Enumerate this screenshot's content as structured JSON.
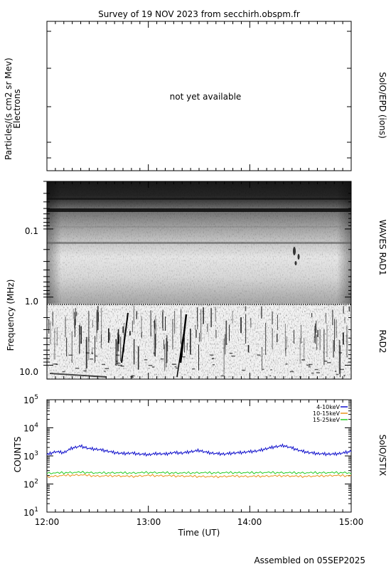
{
  "title": "Survey of 19 NOV 2023 from secchirh.obspm.fr",
  "footer": "Assembled on 05SEP2025",
  "colors": {
    "series_4_10": "#1010cc",
    "series_10_15": "#e8921a",
    "series_15_25": "#22cc22",
    "frame": "#000000",
    "na_text": "#b0b0b0"
  },
  "panels": {
    "epd": {
      "ylabel_line1": "Particles/(s cm2 sr Mev)",
      "ylabel_line2": "Electrons",
      "right_label": "SolO/EPD (ions)",
      "message": "not yet available"
    },
    "waves": {
      "ylabel": "Frequency (MHz)",
      "right_label_rad1": "WAVES RAD1",
      "right_label_rad2": "RAD2",
      "yticks": [
        "0.1",
        "1.0",
        "10.0"
      ]
    },
    "stix": {
      "ylabel": "COUNTS",
      "right_label": "SolO/STIX",
      "ytick_base": "10",
      "ytick_exps": [
        "1",
        "2",
        "3",
        "4",
        "5"
      ]
    }
  },
  "xaxis": {
    "label": "Time (UT)",
    "ticks": [
      "12:00",
      "13:00",
      "14:00",
      "15:00"
    ]
  },
  "chart_data": [
    {
      "type": "heatmap",
      "title": "",
      "ylabel": "Frequency (MHz)",
      "yscale": "log",
      "y_range_mhz": [
        0.02,
        16
      ],
      "x_range": [
        "12:00",
        "15:00"
      ],
      "bands": [
        "WAVES RAD1",
        "RAD2"
      ],
      "band_boundary_mhz": 1.0
    },
    {
      "type": "line",
      "title": "",
      "ylabel": "COUNTS",
      "xlabel": "Time (UT)",
      "yscale": "log",
      "ylim": [
        10,
        100000
      ],
      "xlim": [
        "12:00",
        "15:00"
      ],
      "legend_position": "top-right",
      "series": [
        {
          "name": "4-10keV",
          "color": "#1010cc",
          "x": [
            "12:00",
            "12:05",
            "12:10",
            "12:15",
            "12:20",
            "12:25",
            "12:30",
            "12:35",
            "12:40",
            "12:45",
            "12:50",
            "12:55",
            "13:00",
            "13:05",
            "13:10",
            "13:15",
            "13:20",
            "13:25",
            "13:30",
            "13:35",
            "13:40",
            "13:45",
            "13:50",
            "13:55",
            "14:00",
            "14:05",
            "14:10",
            "14:15",
            "14:20",
            "14:25",
            "14:30",
            "14:35",
            "14:40",
            "14:45",
            "14:50",
            "14:55",
            "15:00"
          ],
          "values": [
            1100,
            1400,
            1300,
            1900,
            2200,
            1800,
            1700,
            1500,
            1300,
            1200,
            1250,
            1150,
            1100,
            1200,
            1150,
            1300,
            1250,
            1400,
            1550,
            1300,
            1200,
            1150,
            1250,
            1300,
            1400,
            1500,
            1800,
            2100,
            2300,
            1900,
            1500,
            1300,
            1200,
            1150,
            1150,
            1250,
            1450
          ]
        },
        {
          "name": "10-15keV",
          "color": "#e8921a",
          "x": [
            "12:00",
            "12:10",
            "12:20",
            "12:30",
            "12:40",
            "12:50",
            "13:00",
            "13:10",
            "13:20",
            "13:30",
            "13:40",
            "13:50",
            "14:00",
            "14:10",
            "14:20",
            "14:30",
            "14:40",
            "14:50",
            "15:00"
          ],
          "values": [
            180,
            200,
            210,
            190,
            195,
            185,
            200,
            195,
            190,
            185,
            180,
            190,
            185,
            190,
            195,
            185,
            190,
            200,
            195
          ]
        },
        {
          "name": "15-25keV",
          "color": "#22cc22",
          "x": [
            "12:00",
            "12:10",
            "12:20",
            "12:30",
            "12:40",
            "12:50",
            "13:00",
            "13:10",
            "13:20",
            "13:30",
            "13:40",
            "13:50",
            "14:00",
            "14:10",
            "14:20",
            "14:30",
            "14:40",
            "14:50",
            "15:00"
          ],
          "values": [
            240,
            250,
            260,
            245,
            250,
            245,
            255,
            250,
            245,
            250,
            248,
            252,
            250,
            255,
            250,
            248,
            250,
            252,
            250
          ]
        }
      ]
    }
  ]
}
